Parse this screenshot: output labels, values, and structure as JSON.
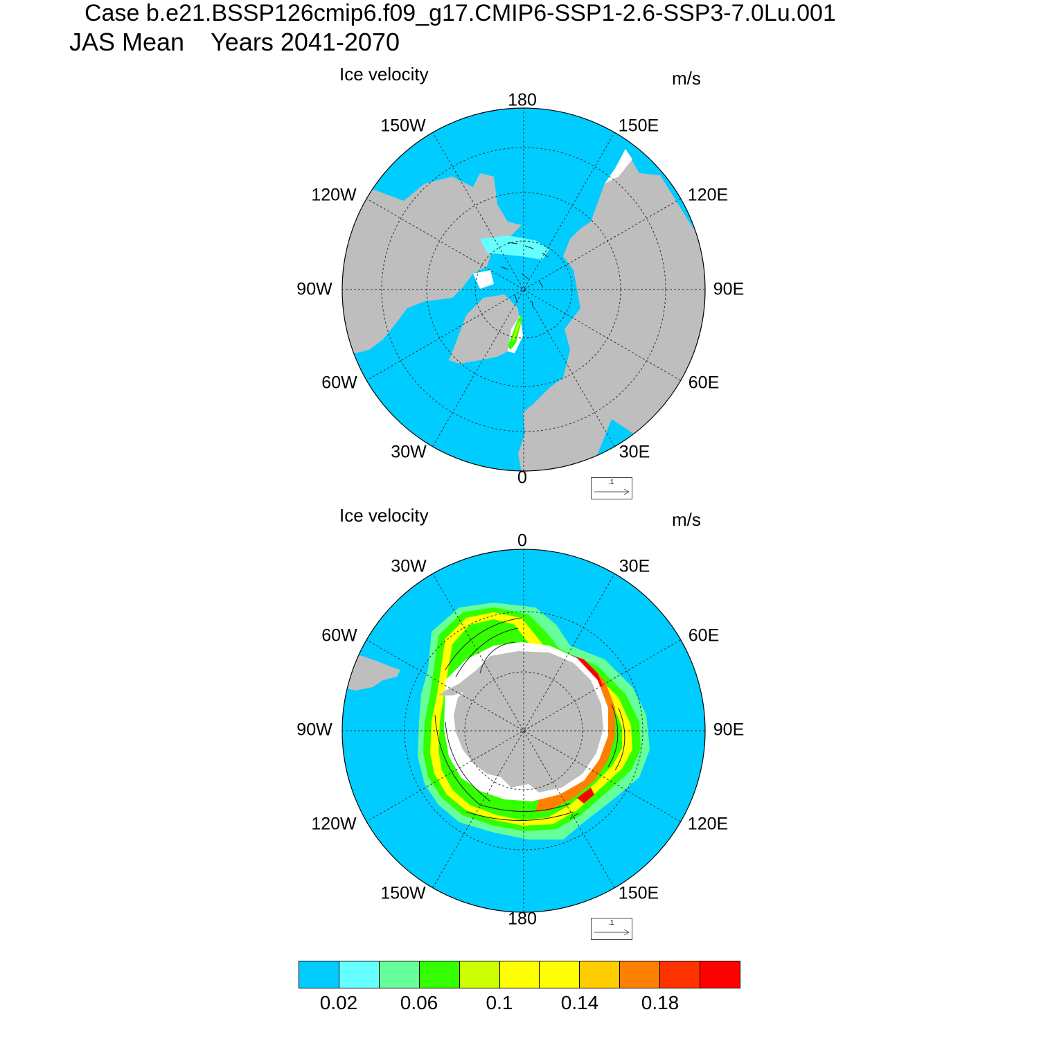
{
  "figure": {
    "title_line1": "Case b.e21.BSSP126cmip6.f09_g17.CMIP6-SSP1-2.6-SSP3-7.0Lu.001",
    "title_season": "JAS Mean",
    "title_years": "Years 2041-2070"
  },
  "panels": [
    {
      "id": "north",
      "title": "Ice velocity",
      "units": "m/s",
      "lon_labels": [
        "180",
        "150E",
        "120E",
        "90E",
        "60E",
        "30E",
        "0",
        "30W",
        "60W",
        "90W",
        "120W",
        "150W"
      ],
      "reference_vector": ".1"
    },
    {
      "id": "south",
      "title": "Ice velocity",
      "units": "m/s",
      "lon_labels": [
        "0",
        "30E",
        "60E",
        "90E",
        "120E",
        "150E",
        "180",
        "150W",
        "120W",
        "90W",
        "60W",
        "30W"
      ],
      "reference_vector": ".1"
    }
  ],
  "colorbar": {
    "colors": [
      "#00ccff",
      "#66ffff",
      "#66ff99",
      "#33ff00",
      "#ccff00",
      "#ffff00",
      "#ffff00",
      "#ffcc00",
      "#ff8000",
      "#ff3300",
      "#ff0000"
    ],
    "tick_labels": [
      "0.02",
      "0.06",
      "0.1",
      "0.14",
      "0.18"
    ]
  },
  "map_colors": {
    "ocean": "#00ccff",
    "land": "#bebebe",
    "no_data": "#ffffff"
  }
}
